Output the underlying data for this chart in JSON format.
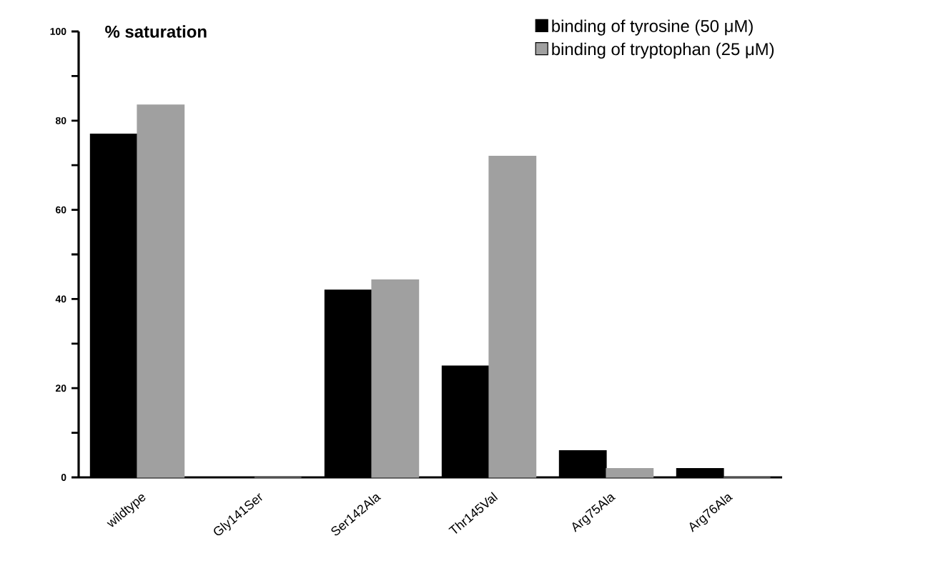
{
  "chart_data": {
    "type": "bar",
    "ylabel": "% saturation",
    "categories": [
      "wildtype",
      "Gly141Ser",
      "Ser142Ala",
      "Thr145Val",
      "Arg75Ala",
      "Arg76Ala"
    ],
    "series": [
      {
        "name": "binding of tyrosine (50 μM)",
        "color": "#000000",
        "values": [
          77,
          0,
          42,
          25,
          6,
          2
        ]
      },
      {
        "name": "binding of tryptophan (25 μM)",
        "color": "#a0a0a0",
        "values": [
          83.5,
          0,
          44.3,
          72,
          2,
          0
        ]
      }
    ],
    "ylim": [
      0,
      100
    ],
    "yticks": [
      0,
      {
        "value": 10,
        "label": null
      },
      20,
      {
        "value": 30,
        "label": null
      },
      40,
      {
        "value": 50,
        "label": null
      },
      60,
      {
        "value": 70,
        "label": null
      },
      80,
      {
        "value": 90,
        "label": null
      },
      100
    ],
    "legend": "top right"
  }
}
